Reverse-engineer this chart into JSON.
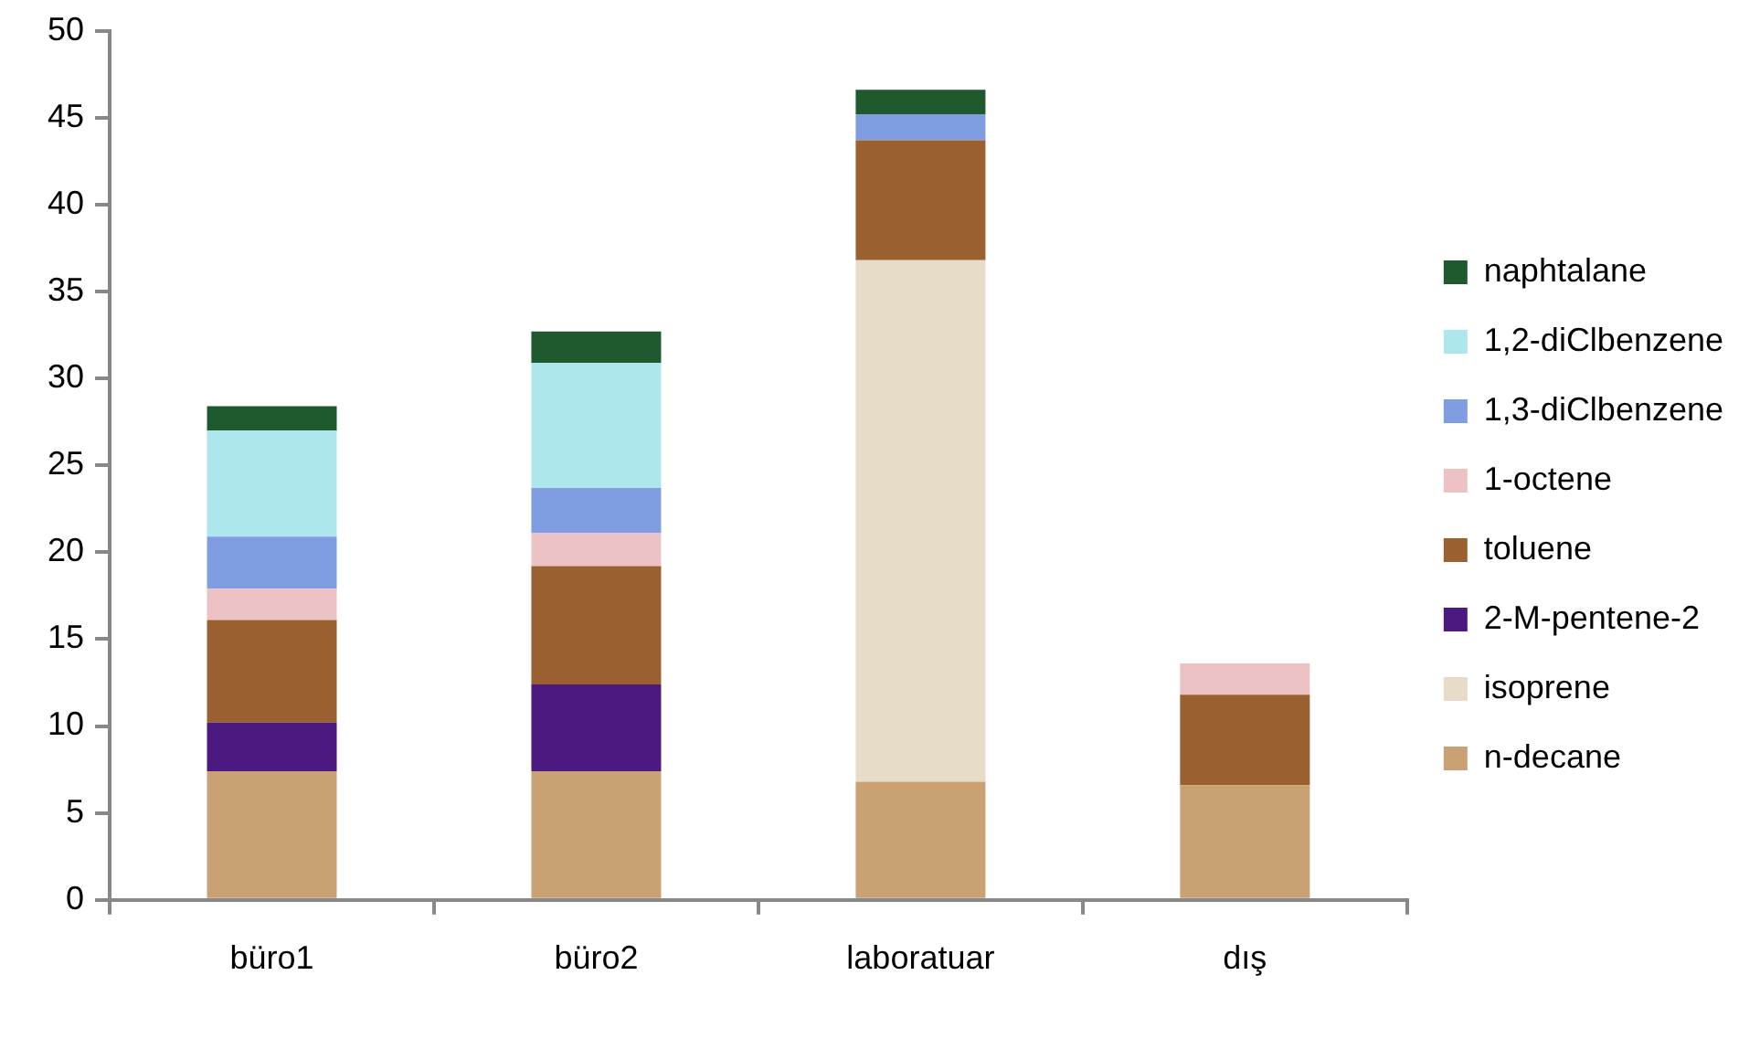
{
  "chart_data": {
    "type": "bar",
    "stacked": true,
    "categories": [
      "büro1",
      "büro2",
      "laboratuar",
      "dış"
    ],
    "series": [
      {
        "name": "n-decane",
        "color": "#c9a173",
        "values": [
          7.4,
          7.4,
          6.8,
          6.6
        ]
      },
      {
        "name": "isoprene",
        "color": "#e6dcc8",
        "values": [
          null,
          null,
          30.0,
          null
        ]
      },
      {
        "name": "2-M-pentene-2",
        "color": "#4b1a80",
        "values": [
          2.8,
          5.0,
          null,
          null
        ]
      },
      {
        "name": "toluene",
        "color": "#9a6030",
        "values": [
          5.9,
          6.8,
          6.9,
          5.2
        ]
      },
      {
        "name": "1-octene",
        "color": "#ecc2c4",
        "values": [
          1.8,
          1.9,
          null,
          1.8
        ]
      },
      {
        "name": "1,3-diClbenzene",
        "color": "#7f9de0",
        "values": [
          3.0,
          2.6,
          1.5,
          null
        ]
      },
      {
        "name": "1,2-diClbenzene",
        "color": "#aee6ee",
        "values": [
          6.1,
          7.2,
          null,
          null
        ]
      },
      {
        "name": "naphtalane",
        "color": "#1f5a2e",
        "values": [
          1.4,
          1.8,
          1.4,
          null
        ]
      }
    ],
    "ylim": [
      0,
      50
    ],
    "yticks": [
      0,
      5,
      10,
      15,
      20,
      25,
      30,
      35,
      40,
      45,
      50
    ],
    "grid": false,
    "legend": "right"
  }
}
